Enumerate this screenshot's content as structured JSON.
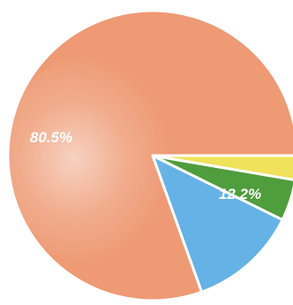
{
  "chart_data": {
    "type": "pie",
    "title": "",
    "slices": [
      {
        "value": 80.5,
        "color": "#ee9a74",
        "label": "80.5%"
      },
      {
        "value": 12.2,
        "color": "#64b2e6",
        "label": "12.2%"
      },
      {
        "value": 4.6,
        "color": "#4f9d3c",
        "label": ""
      },
      {
        "value": 2.7,
        "color": "#f0e25a",
        "label": ""
      }
    ],
    "legend": "none"
  }
}
